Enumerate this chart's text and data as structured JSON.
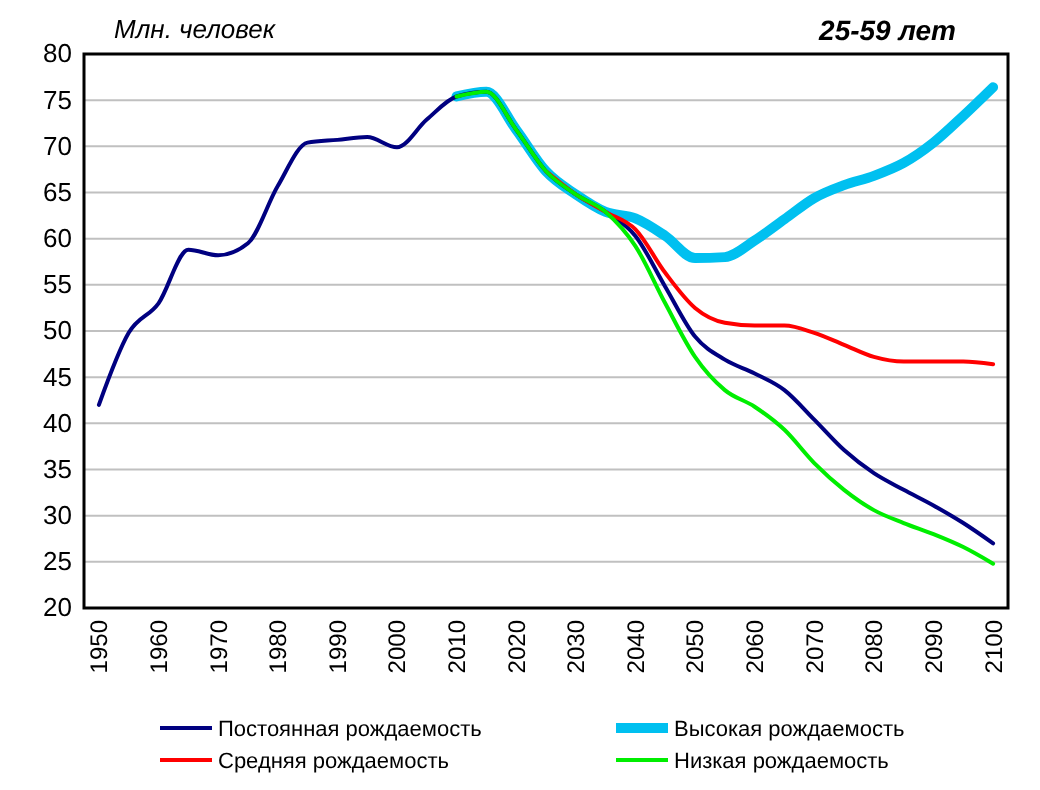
{
  "chart_data": {
    "type": "line",
    "title": "25-59 лет",
    "ylabel": "Млн. человек",
    "xlim": [
      1947.5,
      2102.5
    ],
    "xticks": [
      1950,
      1960,
      1970,
      1980,
      1990,
      2000,
      2010,
      2020,
      2030,
      2040,
      2050,
      2060,
      2070,
      2080,
      2090,
      2100
    ],
    "ylim": [
      20,
      80
    ],
    "yticks": [
      20,
      25,
      30,
      35,
      40,
      45,
      50,
      55,
      60,
      65,
      70,
      75,
      80
    ],
    "grid": "y",
    "legend": "bottom",
    "marker": "none",
    "line_style": "solid",
    "series": [
      {
        "name": "Постоянная рождаемость",
        "color": "#000080",
        "x": [
          1950,
          1955,
          1960,
          1965,
          1970,
          1975,
          1980,
          1985,
          1990,
          1995,
          2000,
          2005,
          2010,
          2015,
          2020,
          2025,
          2030,
          2035,
          2040,
          2045,
          2050,
          2055,
          2060,
          2065,
          2070,
          2075,
          2080,
          2085,
          2090,
          2095,
          2100
        ],
        "values": [
          42.0,
          49.8,
          53.0,
          58.8,
          58.2,
          59.5,
          65.7,
          70.4,
          70.7,
          71.0,
          69.9,
          72.9,
          75.4,
          75.9,
          71.8,
          67.3,
          64.8,
          62.9,
          60.3,
          54.8,
          49.4,
          46.9,
          45.4,
          43.6,
          40.4,
          37.1,
          34.6,
          32.8,
          31.1,
          29.2,
          27.0
        ]
      },
      {
        "name": "Высокая рождаемость",
        "color": "#00c0f0",
        "x": [
          2010,
          2015,
          2020,
          2025,
          2030,
          2035,
          2040,
          2045,
          2050,
          2055,
          2060,
          2065,
          2070,
          2075,
          2080,
          2085,
          2090,
          2095,
          2100
        ],
        "values": [
          75.4,
          75.9,
          71.8,
          67.3,
          64.8,
          62.9,
          62.2,
          60.3,
          57.9,
          58.0,
          59.8,
          62.1,
          64.4,
          65.8,
          66.8,
          68.2,
          70.4,
          73.3,
          76.4
        ]
      },
      {
        "name": "Средняя рождаемость",
        "color": "#ff0000",
        "x": [
          2025,
          2030,
          2035,
          2040,
          2045,
          2050,
          2055,
          2060,
          2065,
          2070,
          2075,
          2080,
          2085,
          2090,
          2095,
          2100
        ],
        "values": [
          67.3,
          64.8,
          62.9,
          61.0,
          56.3,
          52.5,
          50.9,
          50.6,
          50.6,
          49.8,
          48.5,
          47.2,
          46.7,
          46.7,
          46.7,
          46.4
        ]
      },
      {
        "name": "Низкая рождаемость",
        "color": "#00ee00",
        "x": [
          2010,
          2015,
          2020,
          2025,
          2030,
          2035,
          2040,
          2045,
          2050,
          2055,
          2060,
          2065,
          2070,
          2075,
          2080,
          2085,
          2090,
          2095,
          2100
        ],
        "values": [
          75.4,
          75.9,
          71.8,
          67.3,
          64.8,
          62.9,
          59.2,
          53.0,
          47.2,
          43.6,
          41.8,
          39.3,
          35.7,
          32.8,
          30.6,
          29.2,
          28.0,
          26.6,
          24.8
        ]
      }
    ]
  }
}
